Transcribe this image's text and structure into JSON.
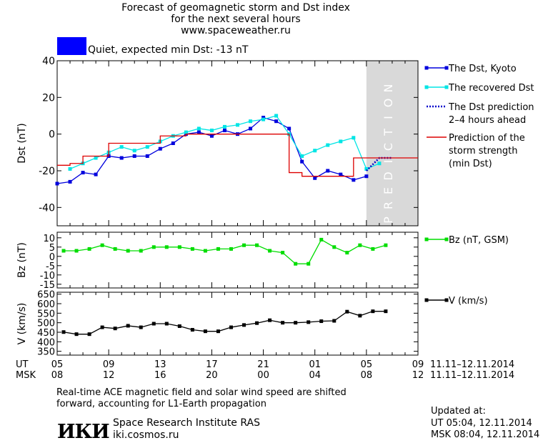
{
  "header": {
    "title_line1": "Forecast of geomagnetic storm and Dst index",
    "title_line2": "for the next several hours",
    "title_line3": "www.spaceweather.ru",
    "status_text": "Quiet, expected min Dst: -13 nT",
    "status_color": "#0000ff"
  },
  "chart_data": [
    {
      "type": "line",
      "ylabel": "Dst (nT)",
      "ylim": [
        -50,
        40
      ],
      "yticks": [
        40,
        20,
        0,
        -20,
        -40
      ],
      "x_axis": {
        "ut_ticks": [
          "05",
          "09",
          "13",
          "17",
          "21",
          "01",
          "05",
          "09"
        ],
        "msk_ticks": [
          "08",
          "12",
          "16",
          "20",
          "00",
          "04",
          "08",
          "12"
        ],
        "ut_label": "UT",
        "msk_label": "MSK",
        "date_range": "11.11–12.11.2014",
        "range_hours": [
          0,
          28
        ]
      },
      "prediction_label": "PREDICTION",
      "prediction_start_hour": 24,
      "series": [
        {
          "name": "The Dst, Kyoto",
          "color": "#0000dd",
          "marker": "square",
          "x": [
            0,
            1,
            2,
            3,
            4,
            5,
            6,
            7,
            8,
            9,
            10,
            11,
            12,
            13,
            14,
            15,
            16,
            17,
            18,
            19,
            20,
            21,
            22,
            23,
            24
          ],
          "y": [
            -27,
            -26,
            -21,
            -22,
            -12,
            -13,
            -12,
            -12,
            -8,
            -5,
            0,
            1,
            -1,
            2,
            0,
            3,
            9,
            7,
            3,
            -15,
            -24,
            -20,
            -22,
            -25,
            -23
          ]
        },
        {
          "name": "The recovered Dst",
          "color": "#00e5e5",
          "marker": "square",
          "x": [
            1,
            2,
            3,
            4,
            5,
            6,
            7,
            8,
            9,
            10,
            11,
            12,
            13,
            14,
            15,
            16,
            17,
            18,
            19,
            20,
            21,
            22,
            23,
            24,
            25
          ],
          "y": [
            -19,
            -16,
            -13,
            -10,
            -7,
            -9,
            -7,
            -4,
            -1,
            1,
            3,
            2,
            4,
            5,
            7,
            8,
            10,
            0,
            -12,
            -9,
            -6,
            -4,
            -2,
            -19,
            -16
          ]
        },
        {
          "name": "The Dst prediction\n2–4 hours ahead",
          "color": "#0000cc",
          "style": "dotted",
          "x": [
            24,
            25,
            26
          ],
          "y": [
            -20,
            -13,
            -13
          ]
        },
        {
          "name": "Prediction of the\nstorm strength\n(min Dst)",
          "color": "#dd0000",
          "style": "step",
          "x": [
            0,
            1,
            2,
            3,
            4,
            5,
            6,
            7,
            8,
            9,
            10,
            11,
            12,
            13,
            14,
            15,
            16,
            17,
            18,
            19,
            20,
            21,
            22,
            23,
            24,
            25,
            26,
            27,
            28
          ],
          "y": [
            -17,
            -16,
            -12,
            -12,
            -5,
            -5,
            -5,
            -5,
            -1,
            -1,
            0,
            0,
            0,
            0,
            0,
            0,
            0,
            0,
            -21,
            -23,
            -23,
            -23,
            -23,
            -13,
            -13,
            -13,
            -13,
            -13,
            -13
          ]
        }
      ]
    },
    {
      "type": "line",
      "ylabel": "Bz (nT)",
      "ylim": [
        -17,
        13
      ],
      "yticks": [
        10,
        5,
        0,
        -5,
        -10,
        -15
      ],
      "series": [
        {
          "name": "Bz (nT, GSM)",
          "color": "#00dd00",
          "marker": "square",
          "x": [
            0.5,
            1.5,
            2.5,
            3.5,
            4.5,
            5.5,
            6.5,
            7.5,
            8.5,
            9.5,
            10.5,
            11.5,
            12.5,
            13.5,
            14.5,
            15.5,
            16.5,
            17.5,
            18.5,
            19.5,
            20.5,
            21.5,
            22.5,
            23.5,
            24.5,
            25.5
          ],
          "y": [
            3,
            3,
            4,
            6,
            4,
            3,
            3,
            5,
            5,
            5,
            4,
            3,
            4,
            4,
            6,
            6,
            3,
            2,
            -4,
            -4,
            9,
            5,
            2,
            6,
            4,
            6
          ]
        }
      ]
    },
    {
      "type": "line",
      "ylabel": "V (km/s)",
      "ylim": [
        330,
        660
      ],
      "yticks": [
        650,
        600,
        550,
        500,
        450,
        400,
        350
      ],
      "series": [
        {
          "name": "V (km/s)",
          "color": "#000000",
          "marker": "square",
          "x": [
            0.5,
            1.5,
            2.5,
            3.5,
            4.5,
            5.5,
            6.5,
            7.5,
            8.5,
            9.5,
            10.5,
            11.5,
            12.5,
            13.5,
            14.5,
            15.5,
            16.5,
            17.5,
            18.5,
            19.5,
            20.5,
            21.5,
            22.5,
            23.5,
            24.5,
            25.5
          ],
          "y": [
            451,
            440,
            440,
            476,
            470,
            484,
            476,
            495,
            495,
            482,
            463,
            455,
            455,
            476,
            488,
            498,
            513,
            500,
            500,
            503,
            508,
            510,
            558,
            537,
            560,
            560
          ]
        }
      ]
    }
  ],
  "footer": {
    "note_line1": "Real-time ACE magnetic field and solar wind speed are shifted",
    "note_line2": "forward, accounting for L1-Earth propagation",
    "logo": "ИКИ",
    "institute": "Space Research Institute RAS",
    "website": "iki.cosmos.ru",
    "updated_label": "Updated at:",
    "updated_ut": "UT  05:04, 12.11.2014",
    "updated_msk": "MSK 08:04, 12.11.2014"
  }
}
